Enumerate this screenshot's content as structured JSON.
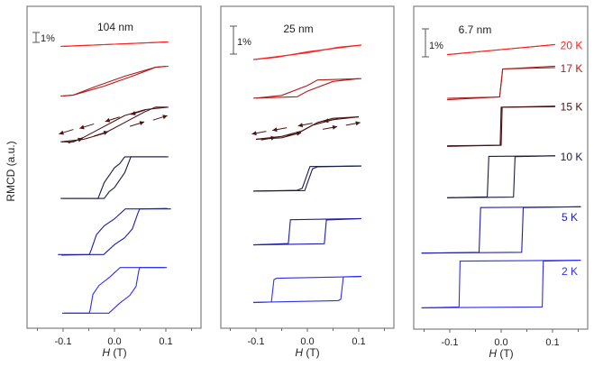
{
  "chart_data": {
    "type": "line",
    "ylabel": "RMCD (a.u.)",
    "xlabel_italic": "H",
    "xlabel_unit": "(T)",
    "xticks": [
      "-0.1",
      "0.0",
      "0.1"
    ],
    "xlim": [
      -0.17,
      0.17
    ],
    "scale_bar_label": "1%",
    "colors": {
      "20 K": "#ff1e1e",
      "17 K": "#b01a1a",
      "15 K": "#4a1212",
      "10 K": "#1c1c42",
      "5 K": "#1e1ea8",
      "2 K": "#2f2ff0"
    },
    "panels": [
      {
        "title": "104 nm",
        "note": "branch = ascending-field sweep (H, RMCD %); descending sweep mirrors it",
        "curves": [
          {
            "label": "20 K",
            "branch": [
              [
                -0.105,
                -0.22
              ],
              [
                0.0,
                0.0
              ],
              [
                0.1,
                0.22
              ]
            ]
          },
          {
            "label": "17 K",
            "branch": [
              [
                -0.105,
                -1.5
              ],
              [
                -0.08,
                -1.4
              ],
              [
                -0.02,
                -0.5
              ],
              [
                0.04,
                0.6
              ],
              [
                0.08,
                1.4
              ],
              [
                0.1,
                1.5
              ]
            ]
          },
          {
            "label": "15 K",
            "branch": [
              [
                -0.105,
                -1.75
              ],
              [
                -0.06,
                -1.5
              ],
              [
                -0.02,
                -0.9
              ],
              [
                0.02,
                0.2
              ],
              [
                0.06,
                1.3
              ],
              [
                0.08,
                1.75
              ],
              [
                0.102,
                1.75
              ]
            ]
          },
          {
            "label": "10 K",
            "branch": [
              [
                -0.105,
                -2.1
              ],
              [
                -0.02,
                -2.1
              ],
              [
                -0.01,
                -1.4
              ],
              [
                0.0,
                -1.0
              ],
              [
                0.02,
                0.5
              ],
              [
                0.032,
                2.1
              ],
              [
                0.1,
                2.1
              ]
            ]
          },
          {
            "label": "5 K",
            "branch": [
              [
                -0.11,
                -2.3
              ],
              [
                -0.021,
                -2.3
              ],
              [
                0.0,
                -1.3
              ],
              [
                0.02,
                -0.6
              ],
              [
                0.035,
                0.3
              ],
              [
                0.045,
                1.8
              ],
              [
                0.049,
                2.3
              ],
              [
                0.103,
                2.35
              ]
            ]
          },
          {
            "label": "2 K",
            "branch": [
              [
                -0.102,
                -2.3
              ],
              [
                -0.011,
                -2.3
              ],
              [
                0.01,
                -1.3
              ],
              [
                0.03,
                -0.5
              ],
              [
                0.042,
                0.4
              ],
              [
                0.047,
                1.9
              ],
              [
                0.049,
                2.3
              ],
              [
                0.098,
                2.3
              ]
            ]
          }
        ]
      },
      {
        "title": "25 nm",
        "curves": [
          {
            "label": "20 K",
            "branch": [
              [
                -0.105,
                -0.26
              ],
              [
                0.0,
                -0.02
              ],
              [
                0.06,
                0.18
              ],
              [
                0.105,
                0.26
              ]
            ]
          },
          {
            "label": "17 K",
            "branch": [
              [
                -0.105,
                -0.35
              ],
              [
                -0.02,
                -0.3
              ],
              [
                0.0,
                -0.1
              ],
              [
                0.05,
                0.25
              ],
              [
                0.1,
                0.35
              ]
            ]
          },
          {
            "label": "15 K",
            "branch": [
              [
                -0.1,
                -0.4
              ],
              [
                -0.05,
                -0.3
              ],
              [
                -0.01,
                -0.1
              ],
              [
                0.02,
                0.2
              ],
              [
                0.05,
                0.35
              ],
              [
                0.1,
                0.4
              ]
            ]
          },
          {
            "label": "10 K",
            "branch": [
              [
                -0.105,
                -0.45
              ],
              [
                -0.005,
                -0.43
              ],
              [
                0.01,
                0.35
              ],
              [
                0.02,
                0.42
              ],
              [
                0.105,
                0.45
              ]
            ]
          },
          {
            "label": "5 K",
            "branch": [
              [
                -0.105,
                -0.47
              ],
              [
                0.033,
                -0.43
              ],
              [
                0.037,
                0.42
              ],
              [
                0.105,
                0.47
              ]
            ]
          },
          {
            "label": "2 K",
            "branch": [
              [
                -0.105,
                -0.46
              ],
              [
                0.06,
                -0.4
              ],
              [
                0.065,
                -0.35
              ],
              [
                0.07,
                0.45
              ],
              [
                0.105,
                0.47
              ]
            ]
          }
        ]
      },
      {
        "title": "6.7 nm",
        "curves": [
          {
            "label": "20 K",
            "branch": [
              [
                -0.105,
                -0.18
              ],
              [
                0.0,
                0.0
              ],
              [
                0.105,
                0.18
              ]
            ]
          },
          {
            "label": "17 K",
            "branch": [
              [
                -0.105,
                -0.6
              ],
              [
                -0.003,
                -0.5
              ],
              [
                0.003,
                0.5
              ],
              [
                0.105,
                0.55
              ]
            ]
          },
          {
            "label": "15 K",
            "branch": [
              [
                -0.105,
                -0.7
              ],
              [
                0.0,
                -0.68
              ],
              [
                0.002,
                0.68
              ],
              [
                0.105,
                0.72
              ]
            ]
          },
          {
            "label": "10 K",
            "branch": [
              [
                -0.105,
                -0.75
              ],
              [
                0.024,
                -0.73
              ],
              [
                0.027,
                0.72
              ],
              [
                0.105,
                0.75
              ]
            ]
          },
          {
            "label": "5 K",
            "branch": [
              [
                -0.155,
                -0.83
              ],
              [
                0.04,
                -0.8
              ],
              [
                0.043,
                0.8
              ],
              [
                0.155,
                0.83
              ]
            ]
          },
          {
            "label": "2 K",
            "branch": [
              [
                -0.155,
                -0.85
              ],
              [
                0.08,
                -0.82
              ],
              [
                0.082,
                0.82
              ],
              [
                0.155,
                0.85
              ]
            ]
          }
        ]
      }
    ]
  }
}
